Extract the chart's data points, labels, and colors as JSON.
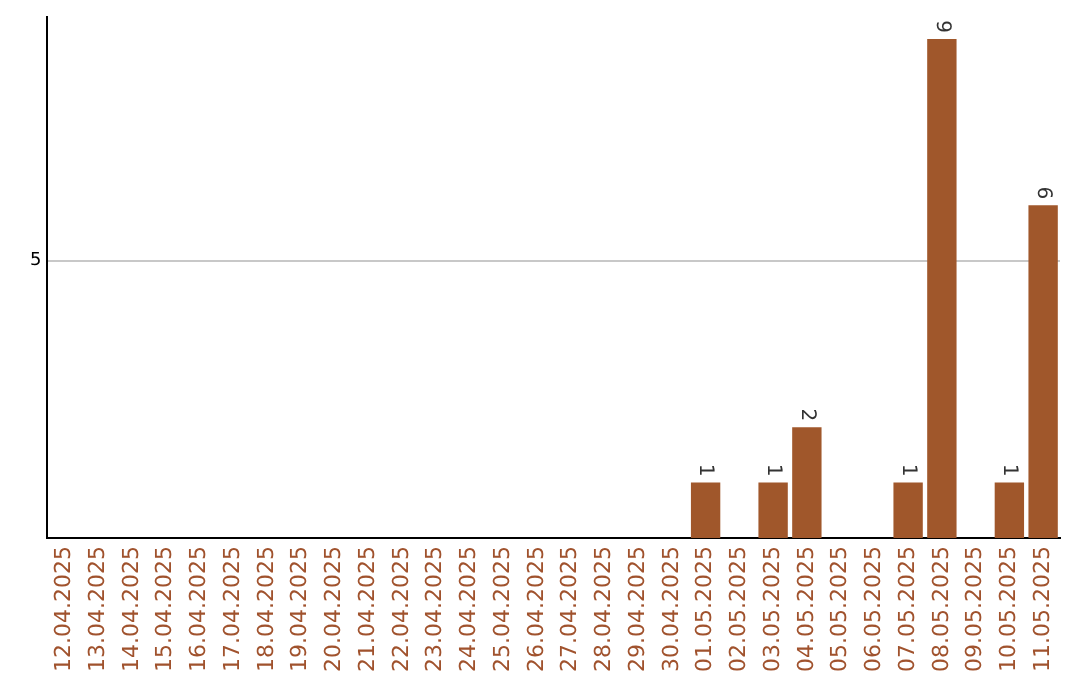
{
  "chart_data": {
    "type": "bar",
    "categories": [
      "12.04.2025",
      "13.04.2025",
      "14.04.2025",
      "15.04.2025",
      "16.04.2025",
      "17.04.2025",
      "18.04.2025",
      "19.04.2025",
      "20.04.2025",
      "21.04.2025",
      "22.04.2025",
      "23.04.2025",
      "24.04.2025",
      "25.04.2025",
      "26.04.2025",
      "27.04.2025",
      "28.04.2025",
      "29.04.2025",
      "30.04.2025",
      "01.05.2025",
      "02.05.2025",
      "03.05.2025",
      "04.05.2025",
      "05.05.2025",
      "06.05.2025",
      "07.05.2025",
      "08.05.2025",
      "09.05.2025",
      "10.05.2025",
      "11.05.2025"
    ],
    "values": [
      null,
      null,
      null,
      null,
      null,
      null,
      null,
      null,
      null,
      null,
      null,
      null,
      null,
      null,
      null,
      null,
      null,
      null,
      null,
      1,
      null,
      1,
      2,
      null,
      null,
      1,
      9,
      null,
      1,
      6
    ],
    "data_labels": true,
    "color": "#a0572b",
    "ylim": [
      0,
      9.4
    ],
    "yticks": [
      5
    ],
    "grid": "y"
  }
}
